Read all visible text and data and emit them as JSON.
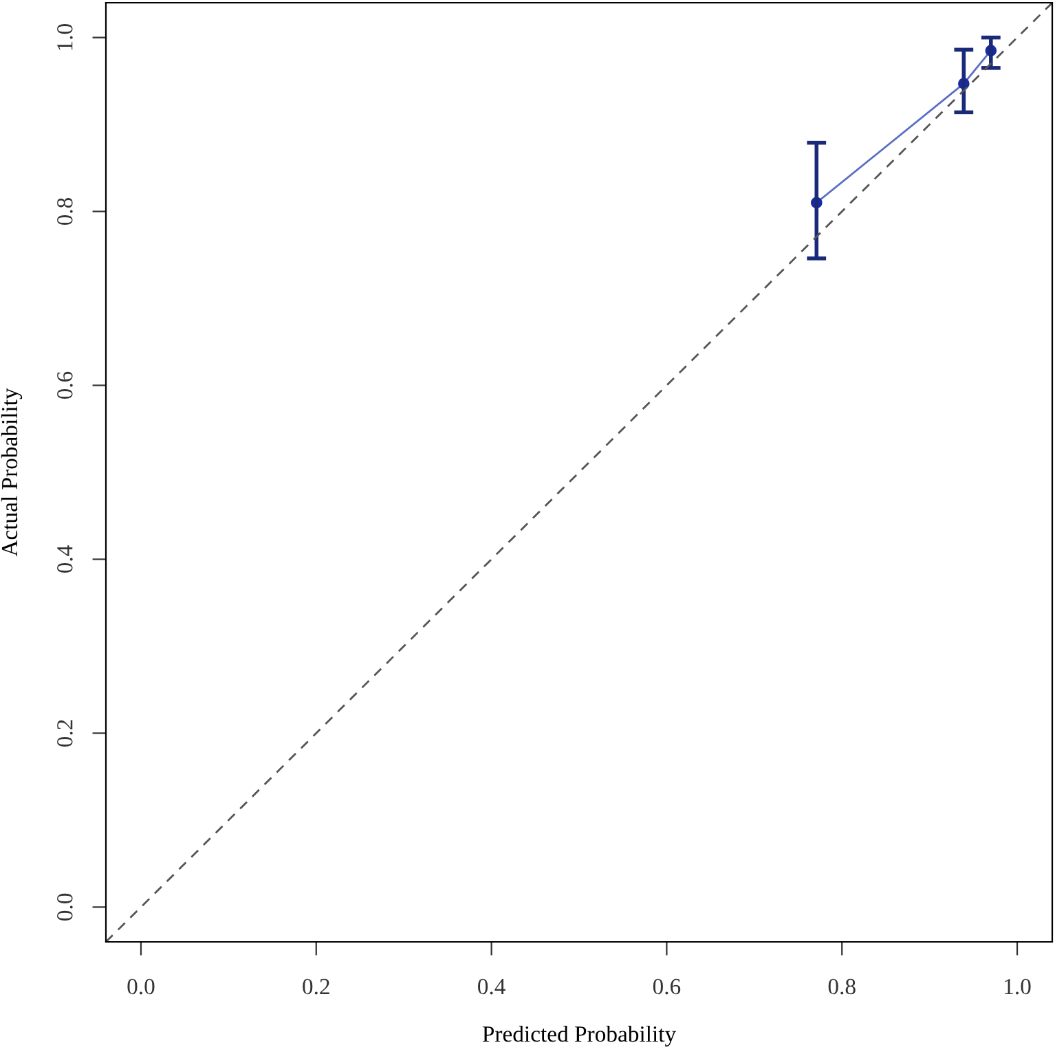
{
  "chart_data": {
    "type": "line",
    "xlabel": "Predicted Probability",
    "ylabel": "Actual Probability",
    "xlim": [
      -0.04,
      1.04
    ],
    "ylim": [
      -0.04,
      1.04
    ],
    "xticks": [
      {
        "value": 0,
        "label": "0.0"
      },
      0.2,
      0.4,
      0.6,
      0.8,
      {
        "value": 1,
        "label": "1.0"
      }
    ],
    "yticks": [
      {
        "value": 0,
        "label": "0.0"
      },
      0.2,
      0.4,
      0.6,
      0.8,
      {
        "value": 1,
        "label": "1.0"
      }
    ],
    "grid": false,
    "legend": false,
    "series": [
      {
        "color": "#5a6fc4",
        "x": [
          0.771,
          0.939,
          0.97
        ],
        "values": [
          0.81,
          0.947,
          0.985
        ],
        "errors": [
          [
            0.746,
            0.879
          ],
          [
            0.914,
            0.986
          ],
          [
            0.965,
            1.0
          ]
        ],
        "marker": "circle",
        "line_style": "solid"
      },
      {
        "type": "line",
        "color": "#555555",
        "x": [
          -0.04,
          1.04
        ],
        "values": [
          -0.04,
          1.04
        ],
        "marker": "none",
        "line_style": "dashed"
      }
    ]
  }
}
